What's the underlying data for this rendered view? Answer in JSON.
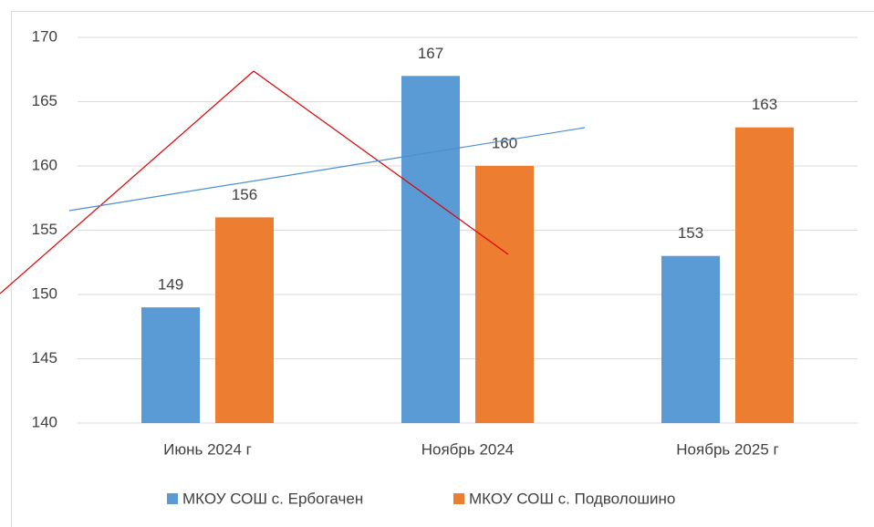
{
  "chart_data": {
    "type": "bar",
    "categories": [
      "Июнь 2024 г",
      "Ноябрь 2024",
      "Ноябрь 2025 г"
    ],
    "series": [
      {
        "name": "МКОУ СОШ с. Ербогачен",
        "color": "#5b9bd5",
        "values": [
          149,
          167,
          153
        ]
      },
      {
        "name": "МКОУ СОШ с. Подволошино",
        "color": "#ed7d31",
        "values": [
          156,
          160,
          163
        ]
      }
    ],
    "ylim": [
      140,
      170
    ],
    "yticks": [
      140,
      145,
      150,
      155,
      160,
      165,
      170
    ],
    "grid": true,
    "legend": "bottom"
  }
}
